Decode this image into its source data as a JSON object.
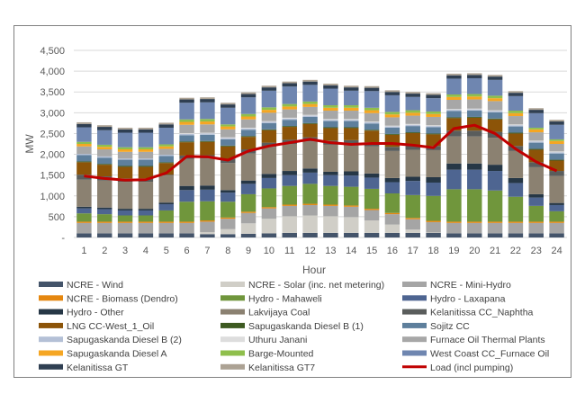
{
  "chart_data": {
    "type": "bar",
    "stacked": true,
    "title": "",
    "xlabel": "Hour",
    "ylabel": "MW",
    "ylim": [
      0,
      4500
    ],
    "yticks": [
      0,
      500,
      1000,
      1500,
      2000,
      2500,
      3000,
      3500,
      4000,
      4500
    ],
    "ytick_labels": [
      "-",
      "500",
      "1,000",
      "1,500",
      "2,000",
      "2,500",
      "3,000",
      "3,500",
      "4,000",
      "4,500"
    ],
    "grid": true,
    "legend_position": "bottom",
    "categories": [
      "1",
      "2",
      "3",
      "4",
      "5",
      "6",
      "7",
      "8",
      "9",
      "10",
      "11",
      "12",
      "13",
      "14",
      "15",
      "16",
      "17",
      "18",
      "19",
      "20",
      "21",
      "22",
      "23",
      "24"
    ],
    "series": [
      {
        "name": "NCRE - Wind",
        "color": "#44546a",
        "values": [
          100,
          100,
          100,
          100,
          100,
          100,
          80,
          80,
          90,
          100,
          110,
          110,
          110,
          110,
          110,
          110,
          110,
          110,
          100,
          100,
          100,
          100,
          100,
          100
        ]
      },
      {
        "name": "NCRE - Solar (inc. net metering)",
        "color": "#d0cec7",
        "values": [
          0,
          0,
          0,
          0,
          0,
          0,
          50,
          120,
          250,
          350,
          400,
          420,
          400,
          380,
          300,
          200,
          80,
          10,
          0,
          0,
          0,
          0,
          0,
          0
        ]
      },
      {
        "name": "NCRE - Mini-Hydro",
        "color": "#a5a5a5",
        "values": [
          250,
          250,
          250,
          250,
          250,
          250,
          250,
          250,
          250,
          250,
          250,
          250,
          250,
          250,
          250,
          250,
          250,
          250,
          250,
          250,
          250,
          250,
          250,
          250
        ]
      },
      {
        "name": "NCRE - Biomass (Dendro)",
        "color": "#e5870f",
        "values": [
          30,
          30,
          30,
          30,
          30,
          30,
          30,
          30,
          30,
          30,
          30,
          30,
          30,
          30,
          30,
          30,
          30,
          30,
          30,
          30,
          30,
          30,
          30,
          30
        ]
      },
      {
        "name": "Hydro - Mahaweli",
        "color": "#70963c",
        "values": [
          200,
          180,
          150,
          150,
          270,
          480,
          460,
          380,
          420,
          450,
          450,
          480,
          450,
          450,
          480,
          470,
          550,
          600,
          780,
          780,
          750,
          600,
          380,
          250
        ]
      },
      {
        "name": "Hydro - Laxapana",
        "color": "#4e6591",
        "values": [
          120,
          120,
          120,
          120,
          150,
          280,
          280,
          220,
          250,
          250,
          260,
          270,
          260,
          270,
          270,
          270,
          340,
          320,
          470,
          470,
          470,
          330,
          200,
          150
        ]
      },
      {
        "name": "Hydro - Other",
        "color": "#263746",
        "values": [
          40,
          40,
          40,
          40,
          40,
          100,
          100,
          60,
          80,
          100,
          100,
          100,
          80,
          100,
          100,
          100,
          100,
          130,
          150,
          150,
          150,
          120,
          80,
          50
        ]
      },
      {
        "name": "Lakvijaya Coal",
        "color": "#8b8171",
        "values": [
          650,
          650,
          650,
          650,
          650,
          650,
          650,
          650,
          650,
          650,
          650,
          650,
          650,
          650,
          650,
          650,
          650,
          650,
          650,
          650,
          650,
          650,
          650,
          650
        ]
      },
      {
        "name": "Kelanitissa CC_Naphtha",
        "color": "#5a5d5c",
        "values": [
          120,
          100,
          80,
          80,
          20,
          80,
          80,
          100,
          100,
          100,
          100,
          100,
          100,
          100,
          100,
          100,
          100,
          100,
          140,
          140,
          140,
          120,
          120,
          120
        ]
      },
      {
        "name": "LNG CC-West_1_Oil",
        "color": "#8c5408",
        "values": [
          300,
          280,
          280,
          280,
          280,
          320,
          320,
          300,
          300,
          300,
          310,
          320,
          300,
          290,
          280,
          290,
          300,
          280,
          300,
          310,
          300,
          300,
          300,
          250
        ]
      },
      {
        "name": "Sapugaskanda Diesel B (1)",
        "color": "#3d5a21",
        "values": [
          20,
          20,
          20,
          20,
          20,
          20,
          20,
          20,
          20,
          20,
          20,
          20,
          20,
          20,
          20,
          20,
          20,
          20,
          20,
          20,
          20,
          20,
          20,
          20
        ]
      },
      {
        "name": "Sojitz CC",
        "color": "#5e7f9c",
        "values": [
          150,
          150,
          150,
          150,
          150,
          150,
          150,
          150,
          150,
          150,
          150,
          150,
          150,
          150,
          150,
          150,
          150,
          150,
          150,
          150,
          150,
          150,
          150,
          150
        ]
      },
      {
        "name": "Sapugaskanda Diesel B (2)",
        "color": "#b4c0d6",
        "values": [
          30,
          30,
          30,
          30,
          30,
          30,
          30,
          30,
          30,
          30,
          30,
          30,
          30,
          30,
          30,
          30,
          30,
          30,
          30,
          30,
          30,
          30,
          30,
          30
        ]
      },
      {
        "name": "Uthuru Janani",
        "color": "#dddddd",
        "values": [
          0,
          0,
          0,
          0,
          0,
          20,
          20,
          20,
          20,
          20,
          20,
          20,
          20,
          20,
          20,
          20,
          20,
          20,
          20,
          20,
          20,
          20,
          20,
          20
        ]
      },
      {
        "name": "Furnace Oil Thermal Plants",
        "color": "#a7a7a7",
        "values": [
          180,
          170,
          160,
          160,
          140,
          200,
          200,
          190,
          200,
          200,
          200,
          190,
          200,
          200,
          200,
          200,
          200,
          200,
          220,
          220,
          220,
          200,
          200,
          180
        ]
      },
      {
        "name": "Sapugaskanda Diesel A",
        "color": "#f5a623",
        "values": [
          60,
          60,
          60,
          60,
          60,
          70,
          70,
          70,
          70,
          70,
          70,
          70,
          70,
          70,
          70,
          70,
          70,
          70,
          70,
          70,
          70,
          70,
          70,
          70
        ]
      },
      {
        "name": "Barge-Mounted",
        "color": "#8fbf4c",
        "values": [
          50,
          50,
          50,
          50,
          50,
          60,
          60,
          50,
          60,
          60,
          60,
          60,
          60,
          60,
          60,
          60,
          60,
          60,
          60,
          60,
          60,
          60,
          40,
          40
        ]
      },
      {
        "name": "West Coast CC_Furnace Oil",
        "color": "#6f86b0",
        "values": [
          350,
          350,
          350,
          350,
          400,
          400,
          400,
          400,
          400,
          400,
          420,
          400,
          400,
          350,
          400,
          400,
          320,
          320,
          380,
          380,
          380,
          350,
          350,
          350
        ]
      },
      {
        "name": "Kelanitissa GT",
        "color": "#2f3f52",
        "values": [
          80,
          80,
          80,
          80,
          80,
          80,
          80,
          80,
          80,
          80,
          80,
          80,
          80,
          80,
          80,
          80,
          80,
          80,
          80,
          80,
          80,
          80,
          80,
          80
        ]
      },
      {
        "name": "Kelanitissa GT7",
        "color": "#aca294",
        "values": [
          40,
          40,
          40,
          40,
          40,
          40,
          40,
          40,
          40,
          40,
          40,
          40,
          40,
          40,
          40,
          40,
          40,
          40,
          40,
          40,
          40,
          40,
          40,
          40
        ]
      }
    ],
    "line_series": {
      "name": "Load (incl pumping)",
      "color": "#c00000",
      "values": [
        1480,
        1420,
        1380,
        1390,
        1550,
        1950,
        1940,
        1860,
        2080,
        2200,
        2280,
        2360,
        2280,
        2240,
        2260,
        2260,
        2220,
        2160,
        2620,
        2700,
        2500,
        2130,
        1820,
        1600
      ]
    }
  }
}
